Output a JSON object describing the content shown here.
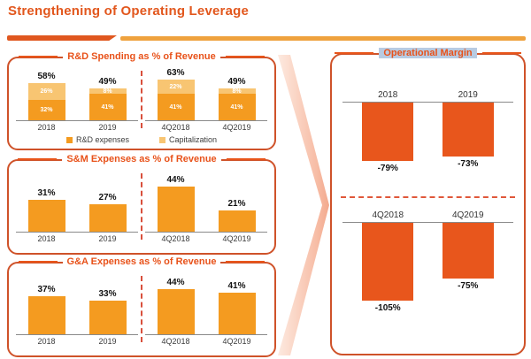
{
  "page": {
    "title": "Strengthening of Operating Leverage"
  },
  "colors": {
    "accent": "#e2571d",
    "panel_border": "#cf5229",
    "bar_orange": "#f49b20",
    "bar_light_orange": "#f8c572",
    "bar_red_orange": "#e8561c",
    "divider_dark": "#e05a26",
    "divider_light": "#efa23e",
    "dashed_line": "#d9503c",
    "highlight_blue": "#b8cbe2",
    "axis_gray": "#8a8a8a"
  },
  "chart_data": [
    {
      "type": "bar",
      "subtype": "stacked",
      "title": "R&D Spending as % of Revenue",
      "ylabel": "% of revenue",
      "legend_position": "bottom",
      "legend": [
        {
          "label": "R&D expenses",
          "color": "#f49b20"
        },
        {
          "label": "Capitalization",
          "color": "#f8c572"
        }
      ],
      "groups": [
        {
          "categories": [
            "2018",
            "2019"
          ],
          "series": [
            {
              "name": "R&D expenses",
              "values": [
                32,
                41
              ],
              "labels": [
                "32%",
                "41%"
              ]
            },
            {
              "name": "Capitalization",
              "values": [
                26,
                8
              ],
              "labels": [
                "26%",
                "8%"
              ]
            }
          ],
          "totals": [
            58,
            49
          ],
          "totals_labels": [
            "58%",
            "49%"
          ]
        },
        {
          "categories": [
            "4Q2018",
            "4Q2019"
          ],
          "series": [
            {
              "name": "R&D expenses",
              "values": [
                41,
                41
              ],
              "labels": [
                "41%",
                "41%"
              ]
            },
            {
              "name": "Capitalization",
              "values": [
                22,
                8
              ],
              "labels": [
                "22%",
                "8%"
              ]
            }
          ],
          "totals": [
            63,
            49
          ],
          "totals_labels": [
            "63%",
            "49%"
          ]
        }
      ]
    },
    {
      "type": "bar",
      "title": "S&M Expenses as % of Revenue",
      "ylabel": "% of revenue",
      "groups": [
        {
          "categories": [
            "2018",
            "2019"
          ],
          "values": [
            31,
            27
          ],
          "labels": [
            "31%",
            "27%"
          ]
        },
        {
          "categories": [
            "4Q2018",
            "4Q2019"
          ],
          "values": [
            44,
            21
          ],
          "labels": [
            "44%",
            "21%"
          ]
        }
      ]
    },
    {
      "type": "bar",
      "title": "G&A Expenses as % of Revenue",
      "ylabel": "% of revenue",
      "groups": [
        {
          "categories": [
            "2018",
            "2019"
          ],
          "values": [
            37,
            33
          ],
          "labels": [
            "37%",
            "33%"
          ]
        },
        {
          "categories": [
            "4Q2018",
            "4Q2019"
          ],
          "values": [
            44,
            41
          ],
          "labels": [
            "44%",
            "41%"
          ]
        }
      ]
    },
    {
      "type": "bar",
      "subtype": "negative",
      "title": "Operational Margin",
      "ylabel": "%",
      "groups": [
        {
          "categories": [
            "2018",
            "2019"
          ],
          "values": [
            -79,
            -73
          ],
          "labels": [
            "-79%",
            "-73%"
          ]
        },
        {
          "categories": [
            "4Q2018",
            "4Q2019"
          ],
          "values": [
            -105,
            -75
          ],
          "labels": [
            "-105%",
            "-75%"
          ]
        }
      ]
    }
  ]
}
